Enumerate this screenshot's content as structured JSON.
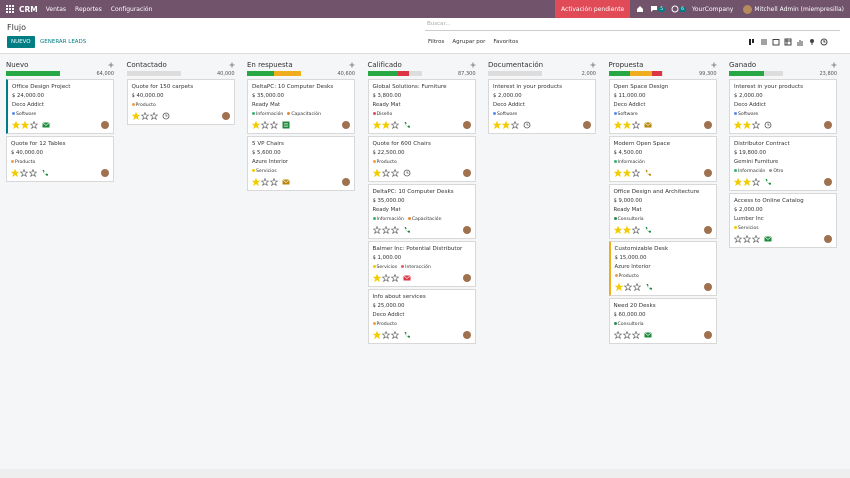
{
  "navbar": {
    "app": "CRM",
    "menus": [
      "Ventas",
      "Reportes",
      "Configuración"
    ],
    "activation": "Activación pendiente",
    "messages": "5",
    "activities": "6",
    "company": "YourCompany",
    "user": "Mitchell Admin (miempresilla)"
  },
  "control_panel": {
    "breadcrumb": "Flujo",
    "new_button": "NUEVO",
    "generate_button": "GENERAR LEADS",
    "search_placeholder": "Buscar...",
    "filters": "Filtros",
    "group_by": "Agrupar por",
    "favorites": "Favoritos"
  },
  "columns": [
    {
      "title": "Nuevo",
      "total": "64,000",
      "progress": [
        {
          "color": "#28a745",
          "value": 100
        }
      ],
      "cards": [
        {
          "name": "Office Design Project",
          "amount": "$ 24,000.00",
          "company": "Deco Addict",
          "tags": [
            {
              "label": "Software",
              "color": "#5b8def"
            }
          ],
          "priority": 2,
          "activity": "email",
          "activity_color": "#1e8a3c",
          "accent": "#017e84"
        },
        {
          "name": "Quote for 12 Tables",
          "amount": "$ 40,000.00",
          "tags": [
            {
              "label": "Producto",
              "color": "#f0a04b"
            }
          ],
          "priority": 1,
          "activity": "phone",
          "activity_color": "#1e8a3c"
        }
      ]
    },
    {
      "title": "Contactado",
      "total": "40,000",
      "progress": [],
      "cards": [
        {
          "name": "Quote for 150 carpets",
          "amount": "$ 40,000.00",
          "tags": [
            {
              "label": "Producto",
              "color": "#f0a04b"
            }
          ],
          "priority": 1,
          "activity": "clock",
          "activity_color": "#555555"
        }
      ]
    },
    {
      "title": "En respuesta",
      "total": "40,600",
      "progress": [
        {
          "color": "#28a745",
          "value": 50
        },
        {
          "color": "#f0ad1e",
          "value": 50
        }
      ],
      "cards": [
        {
          "name": "DeltaPC: 10 Computer Desks",
          "amount": "$ 35,000.00",
          "company": "Ready Mat",
          "tags": [
            {
              "label": "Información",
              "color": "#3cb371"
            },
            {
              "label": "Capacitación",
              "color": "#e38b38"
            }
          ],
          "priority": 1,
          "activity": "list",
          "activity_color": "#1e8a3c"
        },
        {
          "name": "5 VP Chairs",
          "amount": "$ 5,600.00",
          "company": "Azure Interior",
          "tags": [
            {
              "label": "Servicios",
              "color": "#f3cc00"
            }
          ],
          "priority": 1,
          "activity": "email",
          "activity_color": "#b8860b"
        }
      ]
    },
    {
      "title": "Calificado",
      "total": "87,300",
      "progress": [
        {
          "color": "#28a745",
          "value": 57
        },
        {
          "color": "#dc3545",
          "value": 20
        }
      ],
      "cards": [
        {
          "name": "Global Solutions: Furniture",
          "amount": "$ 3,800.00",
          "company": "Ready Mat",
          "tags": [
            {
              "label": "Diseño",
              "color": "#d9534f"
            }
          ],
          "priority": 2,
          "activity": "phone",
          "activity_color": "#1e8a3c"
        },
        {
          "name": "Quote for 600 Chairs",
          "amount": "$ 22,500.00",
          "tags": [
            {
              "label": "Producto",
              "color": "#f0a04b"
            }
          ],
          "priority": 1,
          "activity": "clock",
          "activity_color": "#555555"
        },
        {
          "name": "DeltaPC: 10 Computer Desks",
          "amount": "$ 35,000.00",
          "company": "Ready Mat",
          "tags": [
            {
              "label": "Información",
              "color": "#3cb371"
            },
            {
              "label": "Capacitación",
              "color": "#e38b38"
            }
          ],
          "priority": 0,
          "activity": "phone",
          "activity_color": "#1e8a3c"
        },
        {
          "name": "Balmer Inc: Potential Distributor",
          "amount": "$ 1,000.00",
          "tags": [
            {
              "label": "Servicios",
              "color": "#f3cc00"
            },
            {
              "label": "Interacción",
              "color": "#e06060"
            }
          ],
          "priority": 1,
          "activity": "email",
          "activity_color": "#dc3545"
        },
        {
          "name": "Info about services",
          "amount": "$ 25,000.00",
          "company": "Deco Addict",
          "tags": [
            {
              "label": "Producto",
              "color": "#f0a04b"
            }
          ],
          "priority": 1,
          "activity": "phone",
          "activity_color": "#1e8a3c"
        }
      ]
    },
    {
      "title": "Documentación",
      "total": "2,000",
      "progress": [],
      "cards": [
        {
          "name": "Interest in your products",
          "amount": "$ 2,000.00",
          "company": "Deco Addict",
          "tags": [
            {
              "label": "Software",
              "color": "#5b8def"
            }
          ],
          "priority": 2,
          "activity": "clock",
          "activity_color": "#555555"
        }
      ]
    },
    {
      "title": "Propuesta",
      "total": "99,300",
      "progress": [
        {
          "color": "#28a745",
          "value": 40
        },
        {
          "color": "#f0ad1e",
          "value": 40
        },
        {
          "color": "#dc3545",
          "value": 20
        }
      ],
      "cards": [
        {
          "name": "Open Space Design",
          "amount": "$ 11,000.00",
          "company": "Deco Addict",
          "tags": [
            {
              "label": "Software",
              "color": "#5b8def"
            }
          ],
          "priority": 2,
          "activity": "email",
          "activity_color": "#b8860b"
        },
        {
          "name": "Modern Open Space",
          "amount": "$ 4,500.00",
          "tags": [
            {
              "label": "Información",
              "color": "#3cb371"
            }
          ],
          "priority": 2,
          "activity": "phone",
          "activity_color": "#b8860b"
        },
        {
          "name": "Office Design and Architecture",
          "amount": "$ 9,000.00",
          "company": "Ready Mat",
          "tags": [
            {
              "label": "Consultoría",
              "color": "#2e8b57"
            }
          ],
          "priority": 2,
          "activity": "phone",
          "activity_color": "#1e8a3c"
        },
        {
          "name": "Customizable Desk",
          "amount": "$ 15,000.00",
          "company": "Azure Interior",
          "tags": [
            {
              "label": "Producto",
              "color": "#f0a04b"
            }
          ],
          "priority": 1,
          "activity": "phone",
          "activity_color": "#1e8a3c",
          "accent": "#f0ad1e"
        },
        {
          "name": "Need 20 Desks",
          "amount": "$ 60,000.00",
          "tags": [
            {
              "label": "Consultoría",
              "color": "#2e8b57"
            }
          ],
          "priority": 0,
          "activity": "email",
          "activity_color": "#1e8a3c"
        }
      ]
    },
    {
      "title": "Ganado",
      "total": "23,800",
      "progress": [
        {
          "color": "#28a745",
          "value": 65
        }
      ],
      "cards": [
        {
          "name": "Interest in your products",
          "amount": "$ 2,000.00",
          "company": "Deco Addict",
          "tags": [
            {
              "label": "Software",
              "color": "#5b8def"
            }
          ],
          "priority": 2,
          "activity": "clock",
          "activity_color": "#555555"
        },
        {
          "name": "Distributor Contract",
          "amount": "$ 19,800.00",
          "company": "Gemini Furniture",
          "tags": [
            {
              "label": "Información",
              "color": "#3cb371"
            },
            {
              "label": "Otro",
              "color": "#999999"
            }
          ],
          "priority": 2,
          "activity": "phone",
          "activity_color": "#1e8a3c"
        },
        {
          "name": "Access to Online Catalog",
          "amount": "$ 2,000.00",
          "company": "Lumber Inc",
          "tags": [
            {
              "label": "Servicios",
              "color": "#f3cc00"
            }
          ],
          "priority": 0,
          "activity": "email",
          "activity_color": "#1e8a3c"
        }
      ]
    }
  ]
}
